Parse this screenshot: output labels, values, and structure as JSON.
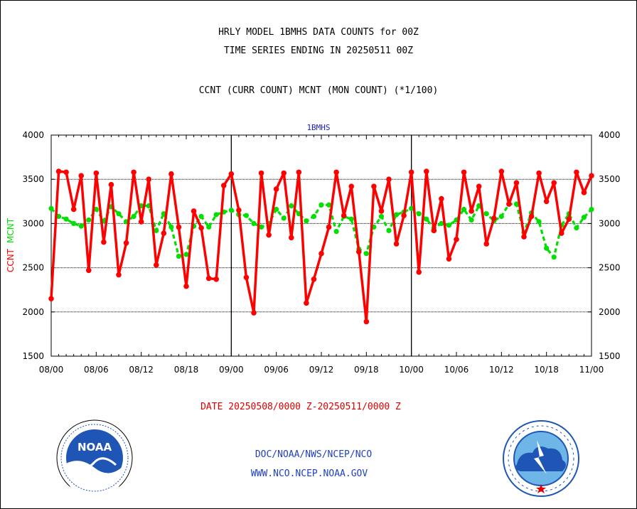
{
  "title_line1": "HRLY MODEL 1BMHS DATA COUNTS for 00Z",
  "title_line2": "TIME SERIES ENDING IN 20250511 00Z",
  "title_line3": "CCNT (CURR COUNT) MCNT (MON COUNT) (*1/100)",
  "chart_label": "1BMHS",
  "date_range": "DATE 20250508/0000 Z-20250511/0000 Z",
  "footer_link1": "DOC/NOAA/NWS/NCEP/NCO",
  "footer_link2": "WWW.NCO.NCEP.NOAA.GOV",
  "logos": {
    "left": "noaa-logo",
    "left_text": "NOAA",
    "right": "nws-logo"
  },
  "colors": {
    "ccnt": "#ff0000",
    "mcnt": "#00e000",
    "text_blue": "#2040c0"
  },
  "chart_data": {
    "type": "line",
    "x": [
      0,
      1,
      2,
      3,
      4,
      5,
      6,
      7,
      8,
      9,
      10,
      11,
      12,
      13,
      14,
      15,
      16,
      17,
      18,
      19,
      20,
      21,
      22,
      23,
      24,
      25,
      26,
      27,
      28,
      29,
      30,
      31,
      32,
      33,
      34,
      35,
      36,
      37,
      38,
      39,
      40,
      41,
      42,
      43,
      44,
      45,
      46,
      47,
      48,
      49,
      50,
      51,
      52,
      53,
      54,
      55,
      56,
      57,
      58,
      59,
      60,
      61,
      62,
      63,
      64,
      65,
      66,
      67,
      68,
      69,
      70,
      71,
      72
    ],
    "xticks": [
      0,
      6,
      12,
      18,
      24,
      30,
      36,
      42,
      48,
      54,
      60,
      66,
      72
    ],
    "xtick_labels": [
      "08/00",
      "08/06",
      "08/12",
      "08/18",
      "09/00",
      "09/06",
      "09/12",
      "09/18",
      "10/00",
      "10/06",
      "10/12",
      "10/18",
      "11/00"
    ],
    "day_dividers": [
      24,
      48
    ],
    "ylim": [
      1500,
      4000
    ],
    "yticks": [
      1500,
      2000,
      2500,
      3000,
      3500,
      4000
    ],
    "hgrid": [
      2000,
      2500,
      3000,
      3500
    ],
    "ylabel_left": [
      "CCNT",
      "MCNT"
    ],
    "series": [
      {
        "name": "CCNT",
        "values": [
          2150,
          3590,
          3580,
          3160,
          3540,
          2470,
          3570,
          2790,
          3440,
          2420,
          2780,
          3580,
          3020,
          3500,
          2530,
          2890,
          3560,
          2960,
          2290,
          3140,
          2950,
          2380,
          2370,
          3430,
          3560,
          3150,
          2390,
          1990,
          3570,
          2870,
          3390,
          3570,
          2840,
          3580,
          2100,
          2370,
          2660,
          2960,
          3580,
          3090,
          3420,
          2680,
          1890,
          3420,
          3140,
          3500,
          2770,
          3090,
          3580,
          2450,
          3590,
          2920,
          3280,
          2600,
          2820,
          3580,
          3140,
          3420,
          2770,
          3060,
          3590,
          3220,
          3460,
          2850,
          3080,
          3570,
          3250,
          3460,
          2890,
          3050,
          3580,
          3350,
          3540
        ]
      },
      {
        "name": "MCNT",
        "values": [
          3170,
          3080,
          3050,
          3000,
          2970,
          3040,
          3160,
          3030,
          3190,
          3110,
          3020,
          3080,
          3200,
          3200,
          2920,
          3110,
          2960,
          2630,
          2650,
          2970,
          3080,
          2960,
          3100,
          3130,
          3150,
          3100,
          3090,
          3000,
          2960,
          3000,
          3160,
          3060,
          3200,
          3110,
          3030,
          3080,
          3210,
          3210,
          2910,
          3080,
          3050,
          2710,
          2660,
          2960,
          3080,
          2920,
          3100,
          3130,
          3170,
          3110,
          3050,
          2950,
          3000,
          2980,
          3040,
          3160,
          3040,
          3200,
          3110,
          3030,
          3080,
          3220,
          3220,
          2900,
          3120,
          3020,
          2720,
          2620,
          2980,
          3110,
          2950,
          3070,
          3160
        ]
      }
    ]
  }
}
